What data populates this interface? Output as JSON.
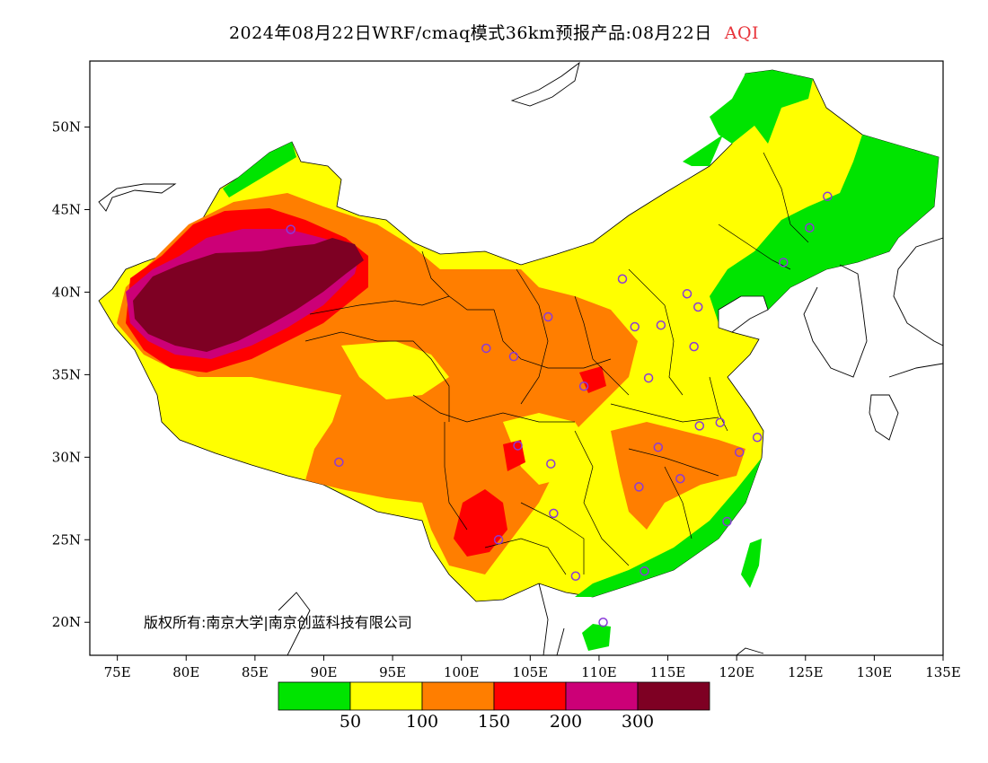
{
  "title": {
    "main": "2024年08月22日WRF/cmaq模式36km预报产品:08月22日",
    "variable": "AQI",
    "variable_color": "#e8333a"
  },
  "copyright": "版权所有:南京大学|南京创蓝科技有限公司",
  "map": {
    "lon_range": [
      73,
      135
    ],
    "lat_range": [
      18,
      54
    ],
    "x_ticks": [
      {
        "lon": 75,
        "label": "75E"
      },
      {
        "lon": 80,
        "label": "80E"
      },
      {
        "lon": 85,
        "label": "85E"
      },
      {
        "lon": 90,
        "label": "90E"
      },
      {
        "lon": 95,
        "label": "95E"
      },
      {
        "lon": 100,
        "label": "100E"
      },
      {
        "lon": 105,
        "label": "105E"
      },
      {
        "lon": 110,
        "label": "110E"
      },
      {
        "lon": 115,
        "label": "115E"
      },
      {
        "lon": 120,
        "label": "120E"
      },
      {
        "lon": 125,
        "label": "125E"
      },
      {
        "lon": 130,
        "label": "130E"
      },
      {
        "lon": 135,
        "label": "135E"
      }
    ],
    "y_ticks": [
      {
        "lat": 20,
        "label": "20N"
      },
      {
        "lat": 25,
        "label": "25N"
      },
      {
        "lat": 30,
        "label": "30N"
      },
      {
        "lat": 35,
        "label": "35N"
      },
      {
        "lat": 40,
        "label": "40N"
      },
      {
        "lat": 45,
        "label": "45N"
      },
      {
        "lat": 50,
        "label": "50N"
      }
    ],
    "marker_color": "#8a3ad8",
    "stations": [
      [
        87.6,
        43.8
      ],
      [
        91.1,
        29.7
      ],
      [
        101.8,
        36.6
      ],
      [
        103.8,
        36.1
      ],
      [
        106.3,
        38.5
      ],
      [
        111.7,
        40.8
      ],
      [
        112.6,
        37.9
      ],
      [
        114.5,
        38.0
      ],
      [
        116.4,
        39.9
      ],
      [
        117.2,
        39.1
      ],
      [
        116.9,
        36.7
      ],
      [
        113.6,
        34.8
      ],
      [
        108.9,
        34.3
      ],
      [
        104.1,
        30.7
      ],
      [
        106.5,
        29.6
      ],
      [
        106.7,
        26.6
      ],
      [
        102.7,
        25.0
      ],
      [
        108.3,
        22.8
      ],
      [
        113.3,
        23.1
      ],
      [
        110.3,
        20.0
      ],
      [
        112.9,
        28.2
      ],
      [
        114.3,
        30.6
      ],
      [
        115.9,
        28.7
      ],
      [
        117.3,
        31.9
      ],
      [
        118.8,
        32.1
      ],
      [
        120.2,
        30.3
      ],
      [
        121.5,
        31.2
      ],
      [
        119.3,
        26.1
      ],
      [
        123.4,
        41.8
      ],
      [
        125.3,
        43.9
      ],
      [
        126.6,
        45.8
      ]
    ]
  },
  "legend": {
    "title": "AQI",
    "bins": [
      {
        "color": "#00e400",
        "range": "0-50"
      },
      {
        "color": "#ffff00",
        "range": "50-100"
      },
      {
        "color": "#ff7e00",
        "range": "100-150"
      },
      {
        "color": "#ff0000",
        "range": "150-200"
      },
      {
        "color": "#cc0077",
        "range": "200-300"
      },
      {
        "color": "#7e0023",
        "range": ">300"
      }
    ],
    "labels": [
      "50",
      "100",
      "150",
      "200",
      "300"
    ]
  }
}
